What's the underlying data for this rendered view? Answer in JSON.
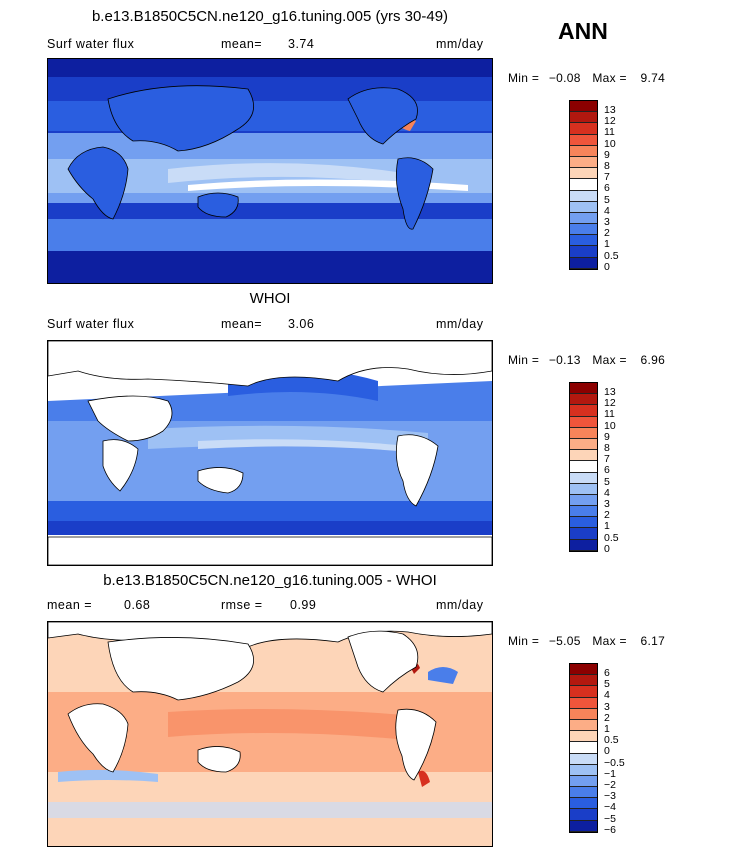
{
  "season": "ANN",
  "panels": [
    {
      "title": "b.e13.B1850C5CN.ne120_g16.tuning.005 (yrs 30-49)",
      "left_label": "Surf water flux",
      "stat1_label": "mean=",
      "stat1_value": "3.74",
      "units": "mm/day",
      "min_label": "Min =",
      "min_value": "−0.08",
      "max_label": "Max =",
      "max_value": "9.74",
      "colorbar_labels": [
        "13",
        "12",
        "11",
        "10",
        "9",
        "8",
        "7",
        "6",
        "5",
        "4",
        "3",
        "2",
        "1",
        "0.5",
        "0"
      ],
      "colorbar_colors": [
        "#8b0000",
        "#b2180f",
        "#d7301f",
        "#ef553b",
        "#f7845a",
        "#fcad86",
        "#fdd5b8",
        "#ffffff",
        "#c9dcf7",
        "#9ec1f4",
        "#739ff0",
        "#4a7eea",
        "#2a5ee0",
        "#1a3ec8",
        "#0d1fa0"
      ]
    },
    {
      "title": "WHOI",
      "left_label": "Surf water flux",
      "stat1_label": "mean=",
      "stat1_value": "3.06",
      "units": "mm/day",
      "min_label": "Min =",
      "min_value": "−0.13",
      "max_label": "Max =",
      "max_value": "6.96",
      "colorbar_labels": [
        "13",
        "12",
        "11",
        "10",
        "9",
        "8",
        "7",
        "6",
        "5",
        "4",
        "3",
        "2",
        "1",
        "0.5",
        "0"
      ],
      "colorbar_colors": [
        "#8b0000",
        "#b2180f",
        "#d7301f",
        "#ef553b",
        "#f7845a",
        "#fcad86",
        "#fdd5b8",
        "#ffffff",
        "#c9dcf7",
        "#9ec1f4",
        "#739ff0",
        "#4a7eea",
        "#2a5ee0",
        "#1a3ec8",
        "#0d1fa0"
      ]
    },
    {
      "title": "b.e13.B1850C5CN.ne120_g16.tuning.005 - WHOI",
      "stat1_label": "mean =",
      "stat1_value": "0.68",
      "stat2_label": "rmse =",
      "stat2_value": "0.99",
      "units": "mm/day",
      "min_label": "Min =",
      "min_value": "−5.05",
      "max_label": "Max =",
      "max_value": "6.17",
      "colorbar_labels": [
        "6",
        "5",
        "4",
        "3",
        "2",
        "1",
        "0.5",
        "0",
        "−0.5",
        "−1",
        "−2",
        "−3",
        "−4",
        "−5",
        "−6"
      ],
      "colorbar_colors": [
        "#8b0000",
        "#b2180f",
        "#d7301f",
        "#ef553b",
        "#f7845a",
        "#fcad86",
        "#fdd5b8",
        "#ffffff",
        "#c9dcf7",
        "#9ec1f4",
        "#739ff0",
        "#4a7eea",
        "#2a5ee0",
        "#1a3ec8",
        "#0d1fa0"
      ]
    }
  ]
}
